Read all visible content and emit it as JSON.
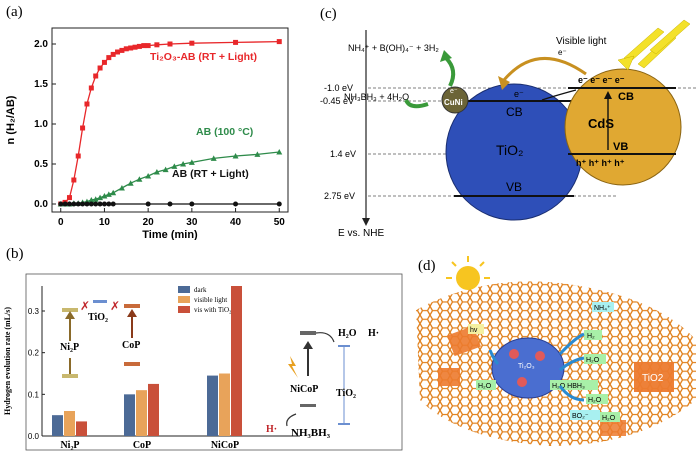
{
  "panels": {
    "a": {
      "label": "(a)",
      "chart_data": {
        "type": "line",
        "xlabel": "Time (min)",
        "ylabel": "n (H₂/AB)",
        "xlim": [
          -2,
          52
        ],
        "ylim": [
          -0.1,
          2.2
        ],
        "xticks": [
          "0",
          "10",
          "20",
          "30",
          "40",
          "50"
        ],
        "yticks": [
          "0.0",
          "0.5",
          "1.0",
          "1.5",
          "2.0"
        ],
        "series": [
          {
            "name": "Ti₂O₃-AB (RT + Light)",
            "color": "#e8272a",
            "marker": "square",
            "x": [
              0,
              1,
              2,
              3,
              4,
              5,
              6,
              7,
              8,
              9,
              10,
              11,
              12,
              13,
              14,
              15,
              16,
              17,
              18,
              19,
              20,
              22,
              25,
              30,
              40,
              50
            ],
            "y": [
              0,
              0.02,
              0.08,
              0.3,
              0.6,
              0.95,
              1.25,
              1.45,
              1.6,
              1.7,
              1.77,
              1.83,
              1.87,
              1.9,
              1.92,
              1.94,
              1.95,
              1.96,
              1.97,
              1.98,
              1.98,
              1.99,
              2.0,
              2.01,
              2.02,
              2.03
            ]
          },
          {
            "name": "AB (100 °C)",
            "color": "#2e8b4a",
            "marker": "triangle",
            "x": [
              0,
              1,
              2,
              3,
              4,
              5,
              6,
              7,
              8,
              9,
              10,
              11,
              12,
              14,
              16,
              18,
              20,
              22,
              24,
              26,
              28,
              30,
              35,
              40,
              45,
              50
            ],
            "y": [
              0,
              0,
              0,
              0.01,
              0.01,
              0.02,
              0.03,
              0.05,
              0.06,
              0.08,
              0.1,
              0.12,
              0.14,
              0.2,
              0.26,
              0.31,
              0.35,
              0.4,
              0.43,
              0.47,
              0.5,
              0.52,
              0.57,
              0.6,
              0.62,
              0.65
            ]
          },
          {
            "name": "AB (RT + Light)",
            "color": "#111111",
            "marker": "circle",
            "x": [
              0,
              1,
              2,
              3,
              4,
              5,
              6,
              7,
              8,
              9,
              10,
              11,
              12,
              20,
              25,
              30,
              40,
              50
            ],
            "y": [
              0,
              0,
              0,
              0,
              0,
              0,
              0,
              0,
              0,
              0,
              0,
              0,
              0,
              0,
              0,
              0,
              0,
              0
            ]
          }
        ]
      }
    },
    "b": {
      "label": "(b)",
      "chart_data": {
        "type": "bar",
        "ylabel": "Hydrogen evolution rate (mL/s)",
        "ylim": [
          0,
          0.36
        ],
        "yticks": [
          "0.0",
          "0.1",
          "0.2",
          "0.3"
        ],
        "categories": [
          "Ni₂P",
          "CoP",
          "NiCoP"
        ],
        "series": [
          {
            "name": "dark",
            "color": "#4c6a96",
            "values": [
              0.05,
              0.1,
              0.145
            ]
          },
          {
            "name": "visible light",
            "color": "#e8a35a",
            "values": [
              0.06,
              0.11,
              0.15
            ]
          },
          {
            "name": "vis with TiO₂",
            "color": "#c9503a",
            "values": [
              0.035,
              0.125,
              0.36
            ]
          }
        ]
      },
      "schematic": {
        "ni2p": "Ni₂P",
        "tio2_left": "TiO₂",
        "cop": "CoP",
        "cross1": "✗",
        "cross2": "✗",
        "h2o": "H₂O",
        "h_dot": "H·",
        "nicop": "NiCoP",
        "tio2_right": "TiO₂",
        "h_dot2": "H·",
        "nh3bh3": "NH₃BH₃"
      }
    },
    "c": {
      "label": "(c)",
      "reaction_product": "NH₄⁺ + B(OH)₄⁻ + 3H₂",
      "reaction_reactant": "NH₃BH₃ + 4H₂O",
      "visible_light": "Visible light",
      "electron": "e⁻",
      "energy_levels": [
        "-1.0 eV",
        "-0.45 eV",
        "1.4 eV",
        "2.75 eV"
      ],
      "cuni": "CuNi",
      "cb": "CB",
      "vb": "VB",
      "tio2": "TiO₂",
      "cds": "CdS",
      "cb2": "CB",
      "vb2": "VB",
      "axis": "E vs. NHE",
      "electrons": "e⁻ e⁻ e⁻ e⁻",
      "holes": "h⁺ h⁺ h⁺ h⁺",
      "e_small": "e⁻"
    },
    "d": {
      "label": "(d)",
      "tio2": "TiO2",
      "hv": "hv",
      "h2o": "H₂O",
      "nh4": "NH₄⁺",
      "h2": "H₂",
      "ti2o3": "Ti₂O₃",
      "h2o_out": "H₂O",
      "h2o_b": "H₂O",
      "bo2": "BO₂⁻",
      "pair": "H₂O  HBH₃",
      "h_lab": "H₂O"
    }
  }
}
